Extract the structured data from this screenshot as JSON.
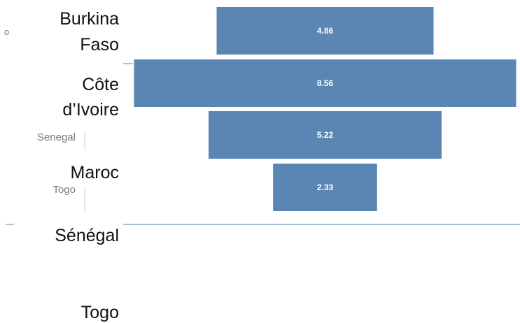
{
  "chart_data": {
    "type": "bar",
    "orientation": "horizontal",
    "style": "funnel",
    "categories": [
      "Burkina Faso",
      "Côte d’Ivoire",
      "Senegal",
      "Togo"
    ],
    "values": [
      4.86,
      8.56,
      5.22,
      2.33
    ],
    "data_labels": [
      "4.86",
      "8.56",
      "5.22",
      "2.33"
    ],
    "bar_color": "#5b86b4",
    "label_color": "#ffffff",
    "axis_line_color": "#7896b9"
  },
  "overlay_labels": {
    "burkina_line1": "Burkina",
    "burkina_line2": "Faso",
    "cote_line1": "Côte",
    "cote_line2": "d’Ivoire",
    "maroc": "Maroc",
    "senegal_fr": "Sénégal",
    "togo": "Togo"
  },
  "ghost_labels": {
    "senegal": "Senegal",
    "togo": "Togo",
    "partial": "o"
  }
}
